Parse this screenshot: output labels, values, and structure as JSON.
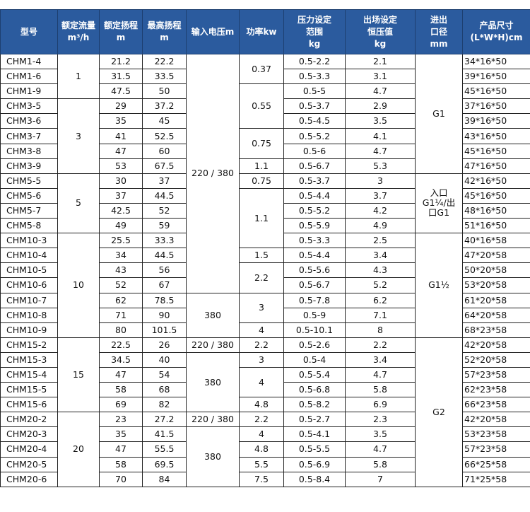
{
  "headers": [
    "型号",
    "额定流量\nm³/h",
    "额定扬程\nm",
    "最高扬程\nm",
    "输入电压m",
    "功率kw",
    "压力设定\n范围\nkg",
    "出场设定\n恒压值\nkg",
    "进出\n口径\nmm",
    "产品尺寸\n(L*W*H)cm"
  ],
  "rows": [
    {
      "model": "CHM1-4",
      "head": "21.2",
      "max": "22.2",
      "range": "0.5-2.2",
      "set": "2.1",
      "size": "34*16*50"
    },
    {
      "model": "CHM1-6",
      "head": "31.5",
      "max": "33.5",
      "range": "0.5-3.3",
      "set": "3.1",
      "size": "39*16*50"
    },
    {
      "model": "CHM1-9",
      "head": "47.5",
      "max": "50",
      "range": "0.5-5",
      "set": "4.7",
      "size": "45*16*50"
    },
    {
      "model": "CHM3-5",
      "head": "29",
      "max": "37.2",
      "range": "0.5-3.7",
      "set": "2.9",
      "size": "37*16*50"
    },
    {
      "model": "CHM3-6",
      "head": "35",
      "max": "45",
      "range": "0.5-4.5",
      "set": "3.5",
      "size": "39*16*50"
    },
    {
      "model": "CHM3-7",
      "head": "41",
      "max": "52.5",
      "range": "0.5-5.2",
      "set": "4.1",
      "size": "43*16*50"
    },
    {
      "model": "CHM3-8",
      "head": "47",
      "max": "60",
      "range": "0.5-6",
      "set": "4.7",
      "size": "45*16*50"
    },
    {
      "model": "CHM3-9",
      "head": "53",
      "max": "67.5",
      "range": "0.5-6.7",
      "set": "5.3",
      "size": "47*16*50"
    },
    {
      "model": "CHM5-5",
      "head": "30",
      "max": "37",
      "range": "0.5-3.7",
      "set": "3",
      "size": "42*16*50"
    },
    {
      "model": "CHM5-6",
      "head": "37",
      "max": "44.5",
      "range": "0.5-4.4",
      "set": "3.7",
      "size": "45*16*50"
    },
    {
      "model": "CHM5-7",
      "head": "42.5",
      "max": "52",
      "range": "0.5-5.2",
      "set": "4.2",
      "size": "48*16*50"
    },
    {
      "model": "CHM5-8",
      "head": "49",
      "max": "59",
      "range": "0.5-5.9",
      "set": "4.9",
      "size": "51*16*50"
    },
    {
      "model": "CHM10-3",
      "head": "25.5",
      "max": "33.3",
      "range": "0.5-3.3",
      "set": "2.5",
      "size": "40*16*58"
    },
    {
      "model": "CHM10-4",
      "head": "34",
      "max": "44.5",
      "range": "0.5-4.4",
      "set": "3.4",
      "size": "47*20*58"
    },
    {
      "model": "CHM10-5",
      "head": "43",
      "max": "56",
      "range": "0.5-5.6",
      "set": "4.3",
      "size": "50*20*58"
    },
    {
      "model": "CHM10-6",
      "head": "52",
      "max": "67",
      "range": "0.5-6.7",
      "set": "5.2",
      "size": "53*20*58"
    },
    {
      "model": "CHM10-7",
      "head": "62",
      "max": "78.5",
      "range": "0.5-7.8",
      "set": "6.2",
      "size": "61*20*58"
    },
    {
      "model": "CHM10-8",
      "head": "71",
      "max": "90",
      "range": "0.5-9",
      "set": "7.1",
      "size": "64*20*58"
    },
    {
      "model": "CHM10-9",
      "head": "80",
      "max": "101.5",
      "range": "0.5-10.1",
      "set": "8",
      "size": "68*23*58"
    },
    {
      "model": "CHM15-2",
      "head": "22.5",
      "max": "26",
      "range": "0.5-2.6",
      "set": "2.2",
      "size": "42*20*58"
    },
    {
      "model": "CHM15-3",
      "head": "34.5",
      "max": "40",
      "range": "0.5-4",
      "set": "3.4",
      "size": "52*20*58"
    },
    {
      "model": "CHM15-4",
      "head": "47",
      "max": "54",
      "range": "0.5-5.4",
      "set": "4.7",
      "size": "57*23*58"
    },
    {
      "model": "CHM15-5",
      "head": "58",
      "max": "68",
      "range": "0.5-6.8",
      "set": "5.8",
      "size": "62*23*58"
    },
    {
      "model": "CHM15-6",
      "head": "69",
      "max": "82",
      "range": "0.5-8.2",
      "set": "6.9",
      "size": "66*23*58"
    },
    {
      "model": "CHM20-2",
      "head": "23",
      "max": "27.2",
      "range": "0.5-2.7",
      "set": "2.3",
      "size": "42*20*58"
    },
    {
      "model": "CHM20-3",
      "head": "35",
      "max": "41.5",
      "range": "0.5-4.1",
      "set": "3.5",
      "size": "53*23*58"
    },
    {
      "model": "CHM20-4",
      "head": "47",
      "max": "55.5",
      "range": "0.5-5.5",
      "set": "4.7",
      "size": "57*23*58"
    },
    {
      "model": "CHM20-5",
      "head": "58",
      "max": "69.5",
      "range": "0.5-6.9",
      "set": "5.8",
      "size": "66*25*58"
    },
    {
      "model": "CHM20-6",
      "head": "70",
      "max": "84",
      "range": "0.5-8.4",
      "set": "7",
      "size": "71*25*58"
    }
  ],
  "flow_groups": [
    {
      "v": "1",
      "rows": 3
    },
    {
      "v": "3",
      "rows": 5
    },
    {
      "v": "5",
      "rows": 4
    },
    {
      "v": "10",
      "rows": 7
    },
    {
      "v": "15",
      "rows": 5
    },
    {
      "v": "20",
      "rows": 5
    }
  ],
  "voltage_groups": [
    {
      "v": "220 / 380",
      "rows": 16
    },
    {
      "v": "380",
      "rows": 3
    },
    {
      "v": "220 / 380",
      "rows": 1
    },
    {
      "v": "380",
      "rows": 4
    },
    {
      "v": "220 / 380",
      "rows": 1
    },
    {
      "v": "380",
      "rows": 4
    }
  ],
  "power_groups": [
    {
      "v": "0.37",
      "rows": 2
    },
    {
      "v": "0.55",
      "rows": 3
    },
    {
      "v": "0.75",
      "rows": 2
    },
    {
      "v": "1.1",
      "rows": 1
    },
    {
      "v": "0.75",
      "rows": 1
    },
    {
      "v": "1.1",
      "rows": 4
    },
    {
      "v": "1.5",
      "rows": 1
    },
    {
      "v": "2.2",
      "rows": 2
    },
    {
      "v": "3",
      "rows": 2
    },
    {
      "v": "4",
      "rows": 1
    },
    {
      "v": "2.2",
      "rows": 1
    },
    {
      "v": "3",
      "rows": 1
    },
    {
      "v": "4",
      "rows": 2
    },
    {
      "v": "4.8",
      "rows": 1
    },
    {
      "v": "2.2",
      "rows": 1
    },
    {
      "v": "4",
      "rows": 1
    },
    {
      "v": "4.8",
      "rows": 1
    },
    {
      "v": "5.5",
      "rows": 1
    },
    {
      "v": "7.5",
      "rows": 1
    }
  ],
  "port_groups": [
    {
      "v": "G1",
      "rows": 8
    },
    {
      "v": "入口\nG1¼/出\n口G1",
      "rows": 4
    },
    {
      "v": "G1½",
      "rows": 7
    },
    {
      "v": "G2",
      "rows": 10
    }
  ],
  "colors": {
    "header_bg": "#2b5b9e",
    "header_text": "#ffffff",
    "border": "#222222"
  }
}
